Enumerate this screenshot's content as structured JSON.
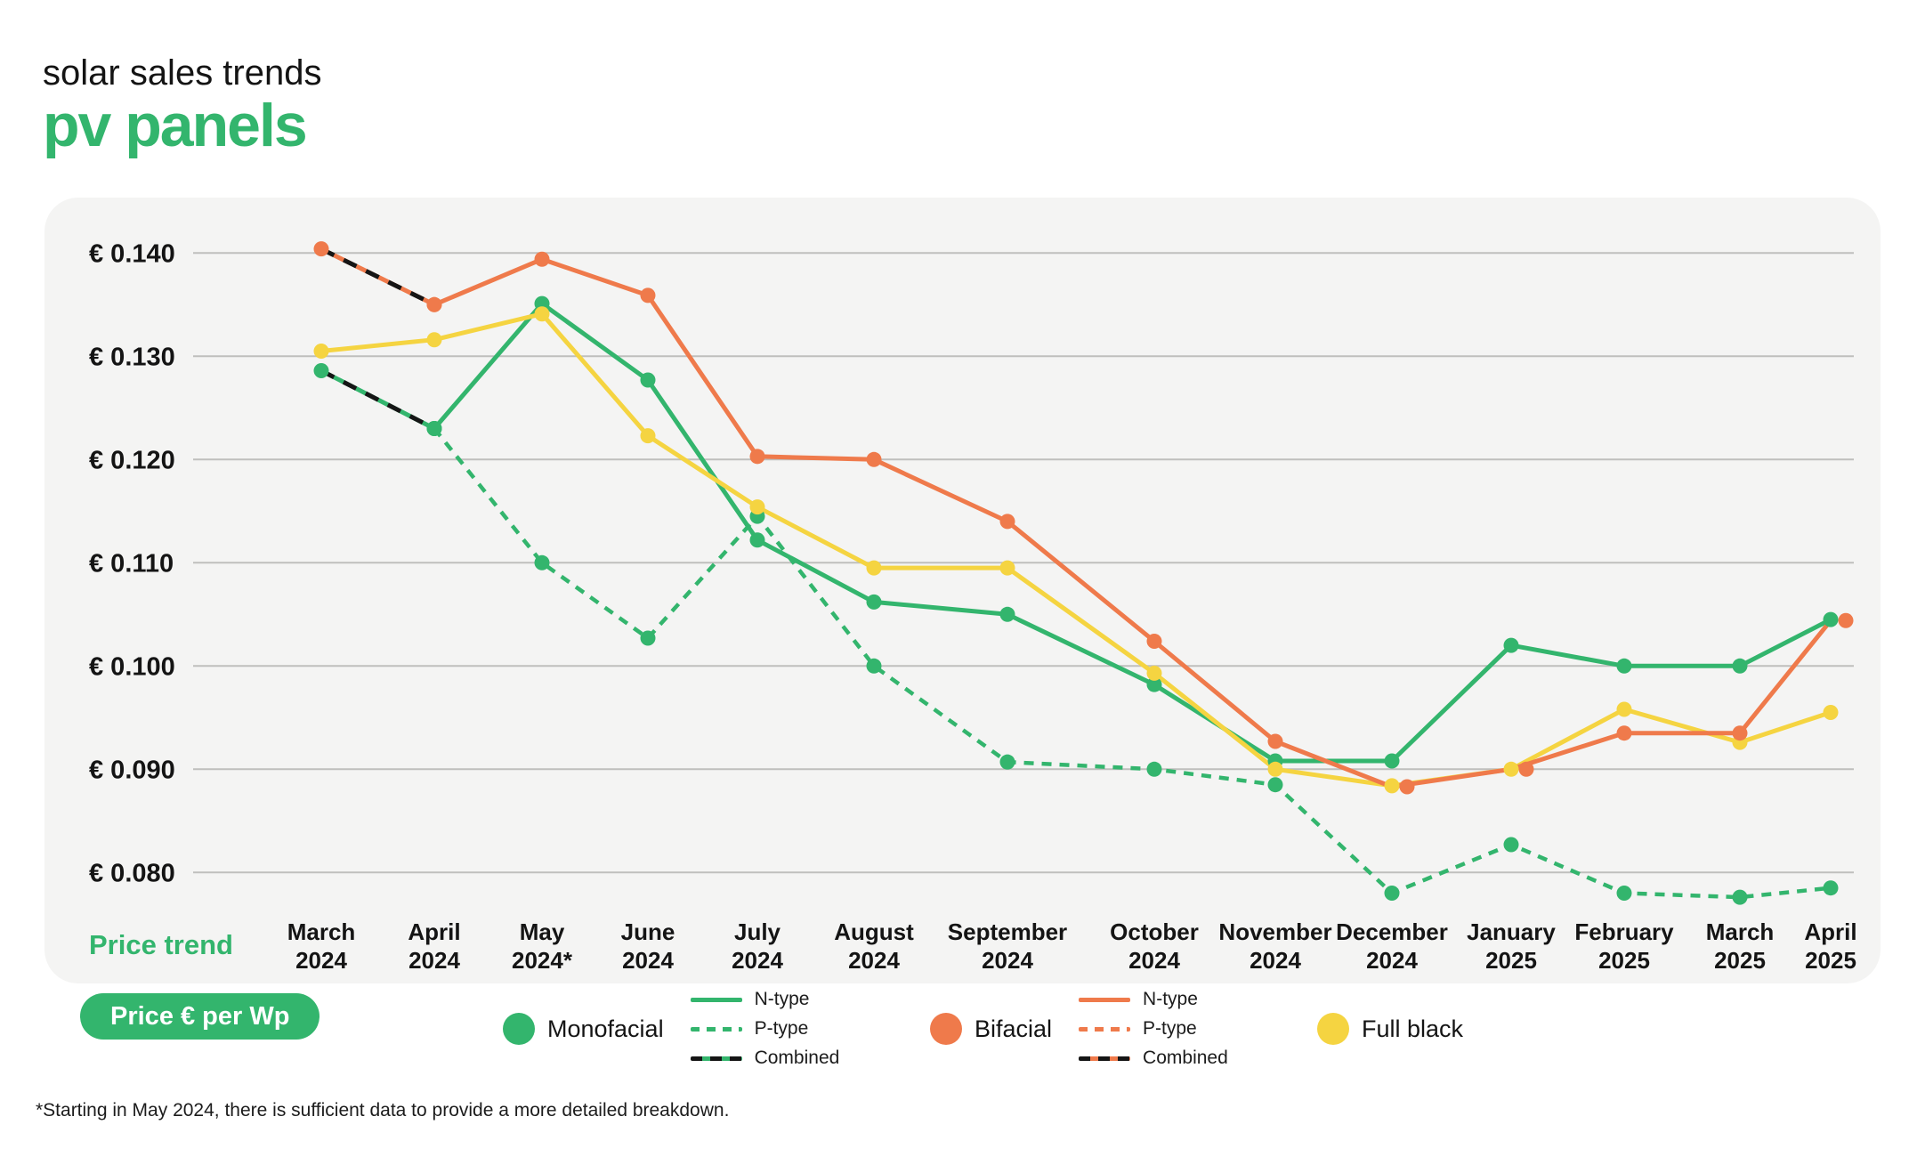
{
  "page": {
    "title_line1": "solar sales trends",
    "title_line2": "pv panels",
    "price_trend_label": "Price trend",
    "unit_pill_label": "Price € per Wp",
    "footnote": "*Starting in May 2024, there is sufficient data to provide a more detailed breakdown."
  },
  "colors": {
    "green": "#33b56d",
    "orange": "#ef7a4b",
    "yellow": "#f5d441",
    "ink": "#141414",
    "combined_dash": "#151515",
    "card_bg": "#f4f4f3",
    "gridline": "#bfbfbd",
    "white": "#ffffff"
  },
  "legend": {
    "groups": [
      {
        "name": "Monofacial",
        "color_key": "green",
        "items": [
          {
            "label": "N-type",
            "style": "solid"
          },
          {
            "label": "P-type",
            "style": "dashed"
          },
          {
            "label": "Combined",
            "style": "combined"
          }
        ]
      },
      {
        "name": "Bifacial",
        "color_key": "orange",
        "items": [
          {
            "label": "N-type",
            "style": "solid"
          },
          {
            "label": "P-type",
            "style": "dashed"
          },
          {
            "label": "Combined",
            "style": "combined"
          }
        ]
      },
      {
        "name": "Full black",
        "color_key": "yellow",
        "items": []
      }
    ]
  },
  "chart_data": {
    "type": "line",
    "title": "solar sales trends — pv panels",
    "ylabel": "Price € per Wp",
    "xlabel": "Price trend",
    "grid": "horizontal",
    "legend_position": "bottom",
    "ylim": [
      0.0745,
      0.1455
    ],
    "yticks": [
      {
        "value": 0.14,
        "label": "€ 0.140"
      },
      {
        "value": 0.13,
        "label": "€ 0.130"
      },
      {
        "value": 0.12,
        "label": "€ 0.120"
      },
      {
        "value": 0.11,
        "label": "€ 0.110"
      },
      {
        "value": 0.1,
        "label": "€ 0.100"
      },
      {
        "value": 0.09,
        "label": "€ 0.090"
      },
      {
        "value": 0.08,
        "label": "€ 0.080"
      }
    ],
    "categories": [
      {
        "line1": "March",
        "line2": "2024"
      },
      {
        "line1": "April",
        "line2": "2024"
      },
      {
        "line1": "May",
        "line2": "2024*"
      },
      {
        "line1": "June",
        "line2": "2024"
      },
      {
        "line1": "July",
        "line2": "2024"
      },
      {
        "line1": "August",
        "line2": "2024"
      },
      {
        "line1": "September",
        "line2": "2024"
      },
      {
        "line1": "October",
        "line2": "2024"
      },
      {
        "line1": "November",
        "line2": "2024"
      },
      {
        "line1": "December",
        "line2": "2024"
      },
      {
        "line1": "January",
        "line2": "2025"
      },
      {
        "line1": "February",
        "line2": "2025"
      },
      {
        "line1": "March",
        "line2": "2025"
      },
      {
        "line1": "April",
        "line2": "2025"
      }
    ],
    "series": [
      {
        "name": "Monofacial P-type",
        "group": "Monofacial",
        "color_key": "green",
        "style": "dashed",
        "values": [
          null,
          0.123,
          0.11,
          0.1027,
          0.1145,
          0.1,
          0.0907,
          0.09,
          0.0885,
          0.078,
          0.0827,
          0.078,
          0.0776,
          0.0785
        ]
      },
      {
        "name": "Monofacial N-type",
        "group": "Monofacial",
        "color_key": "green",
        "style": "solid",
        "values": [
          null,
          0.123,
          0.1351,
          0.1277,
          0.1122,
          0.1062,
          0.105,
          0.0982,
          0.0908,
          0.0908,
          0.102,
          0.1,
          0.1,
          0.1045
        ]
      },
      {
        "name": "Full black",
        "group": "Full black",
        "color_key": "yellow",
        "style": "solid",
        "values": [
          0.1305,
          0.1316,
          0.1341,
          0.1223,
          0.1154,
          0.1095,
          0.1095,
          0.0993,
          0.09,
          0.0884,
          0.09,
          0.0958,
          0.0926,
          0.0955
        ]
      },
      {
        "name": "Bifacial N-type",
        "group": "Bifacial",
        "color_key": "orange",
        "style": "solid",
        "values": [
          null,
          0.135,
          0.1394,
          0.1359,
          0.1203,
          0.12,
          0.114,
          0.1024,
          0.0927,
          0.0883,
          0.09,
          0.0935,
          0.0935,
          0.1044
        ]
      },
      {
        "name": "Bifacial P-type",
        "group": "Bifacial",
        "color_key": "orange",
        "style": "dashed",
        "values": [
          null,
          null,
          null,
          null,
          null,
          null,
          null,
          null,
          null,
          null,
          null,
          null,
          null,
          null
        ]
      },
      {
        "name": "Monofacial Combined",
        "group": "Monofacial",
        "color_key": "green",
        "style": "combined",
        "values": [
          0.1286,
          0.123,
          null,
          null,
          null,
          null,
          null,
          null,
          null,
          null,
          null,
          null,
          null,
          null
        ]
      },
      {
        "name": "Bifacial Combined",
        "group": "Bifacial",
        "color_key": "orange",
        "style": "combined",
        "values": [
          0.1404,
          0.135,
          null,
          null,
          null,
          null,
          null,
          null,
          null,
          null,
          null,
          null,
          null,
          null
        ]
      }
    ]
  }
}
